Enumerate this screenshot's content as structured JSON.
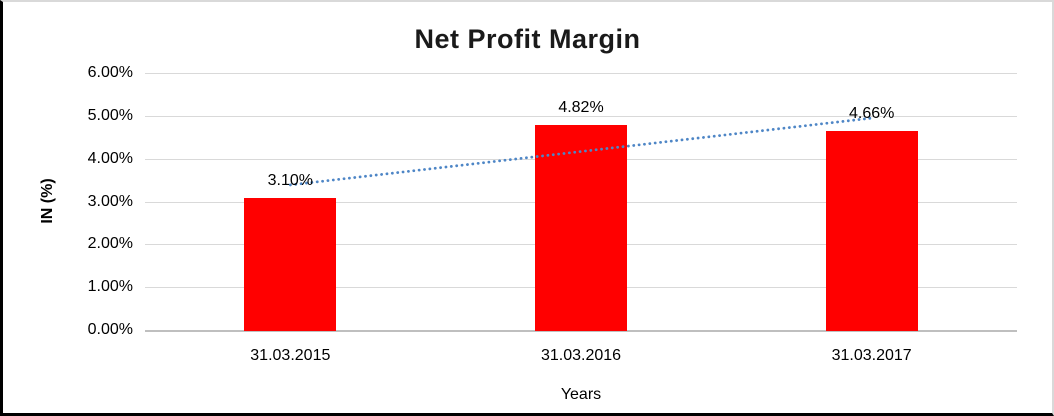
{
  "chart_data": {
    "type": "bar",
    "title": "Net Profit Margin",
    "xlabel": "Years",
    "ylabel": "IN (%)",
    "categories": [
      "31.03.2015",
      "31.03.2016",
      "31.03.2017"
    ],
    "values": [
      3.1,
      4.82,
      4.66
    ],
    "value_labels": [
      "3.10%",
      "4.82%",
      "4.66%"
    ],
    "ylim": [
      0,
      6
    ],
    "yticks": [
      "0.00%",
      "1.00%",
      "2.00%",
      "3.00%",
      "4.00%",
      "5.00%",
      "6.00%"
    ],
    "grid": true,
    "legend": "none",
    "bar_color": "#ff0000",
    "gridline_color": "#d9d9d9",
    "axis_line_color": "#bfbfbf",
    "trendline": {
      "type": "linear",
      "style": "dotted",
      "color": "#4e86c6",
      "start_value": 3.41,
      "end_value": 4.97
    }
  }
}
